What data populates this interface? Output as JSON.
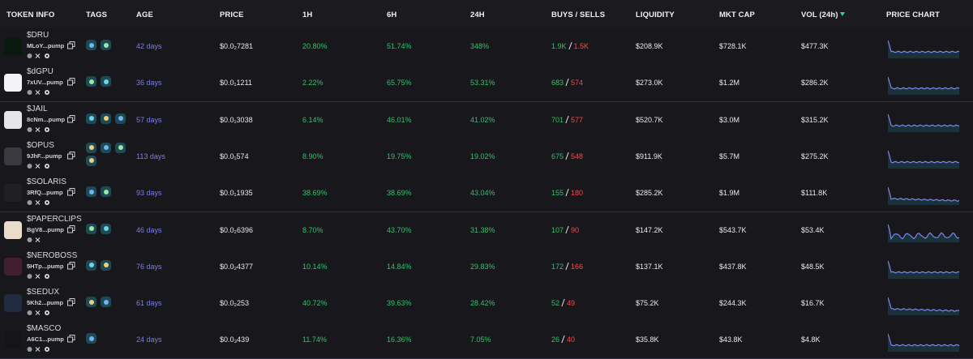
{
  "table": {
    "headers": [
      "TOKEN INFO",
      "TAGS",
      "AGE",
      "PRICE",
      "1H",
      "6H",
      "24H",
      "BUYS / SELLS",
      "LIQUIDITY",
      "MKT CAP",
      "VOL (24h)",
      "PRICE CHART"
    ],
    "rows": [
      {
        "symbol": "$DRU",
        "address": "MLoY...pump",
        "age": "42 days",
        "price": "$0.0₂7281",
        "h1": "20.80%",
        "h6": "51.74%",
        "h24": "348%",
        "buys": "1.9K",
        "sells": "1.5K",
        "liquidity": "$208.9K",
        "mkt_cap": "$728.1K",
        "vol": "$477.3K"
      },
      {
        "symbol": "$dGPU",
        "address": "7xUV...pump",
        "age": "36 days",
        "price": "$0.0₁1211",
        "h1": "2.22%",
        "h6": "65.75%",
        "h24": "53.31%",
        "buys": "683",
        "sells": "574",
        "liquidity": "$273.0K",
        "mkt_cap": "$1.2M",
        "vol": "$286.2K"
      },
      {
        "symbol": "$JAIL",
        "address": "8cNm...pump",
        "age": "57 days",
        "price": "$0.0₁3038",
        "h1": "6.14%",
        "h6": "46.01%",
        "h24": "41.02%",
        "buys": "701",
        "sells": "577",
        "liquidity": "$520.7K",
        "mkt_cap": "$3.0M",
        "vol": "$315.2K"
      },
      {
        "symbol": "$OPUS",
        "address": "9JhF...pump",
        "age": "113 days",
        "price": "$0.0₁574",
        "h1": "8.90%",
        "h6": "19.75%",
        "h24": "19.02%",
        "buys": "675",
        "sells": "548",
        "liquidity": "$911.9K",
        "mkt_cap": "$5.7M",
        "vol": "$275.2K"
      },
      {
        "symbol": "$SOLARIS",
        "address": "3RfQ...pump",
        "age": "93 days",
        "price": "$0.0₁1935",
        "h1": "38.69%",
        "h6": "38.69%",
        "h24": "43.04%",
        "buys": "155",
        "sells": "180",
        "liquidity": "$285.2K",
        "mkt_cap": "$1.9M",
        "vol": "$111.8K"
      },
      {
        "symbol": "$PAPERCLIPS",
        "address": "BgV8...pump",
        "age": "46 days",
        "price": "$0.0₂6396",
        "h1": "8.70%",
        "h6": "43.70%",
        "h24": "31.38%",
        "buys": "107",
        "sells": "90",
        "liquidity": "$147.2K",
        "mkt_cap": "$543.7K",
        "vol": "$53.4K"
      },
      {
        "symbol": "$NEROBOSS",
        "address": "5HTp...pump",
        "age": "76 days",
        "price": "$0.0₂4377",
        "h1": "10.14%",
        "h6": "14.84%",
        "h24": "29.83%",
        "buys": "172",
        "sells": "166",
        "liquidity": "$137.1K",
        "mkt_cap": "$437.8K",
        "vol": "$48.5K"
      },
      {
        "symbol": "$SEDUX",
        "address": "5Kh2...pump",
        "age": "61 days",
        "price": "$0.0₂253",
        "h1": "40.72%",
        "h6": "39.63%",
        "h24": "28.42%",
        "buys": "52",
        "sells": "49",
        "liquidity": "$75.2K",
        "mkt_cap": "$244.3K",
        "vol": "$16.7K"
      },
      {
        "symbol": "$MASCO",
        "address": "A6C1...pump",
        "age": "24 days",
        "price": "$0.0₃439",
        "h1": "11.74%",
        "h6": "16.36%",
        "h24": "7.05%",
        "buys": "26",
        "sells": "40",
        "liquidity": "$35.8K",
        "mkt_cap": "$43.8K",
        "vol": "$4.8K"
      }
    ]
  }
}
